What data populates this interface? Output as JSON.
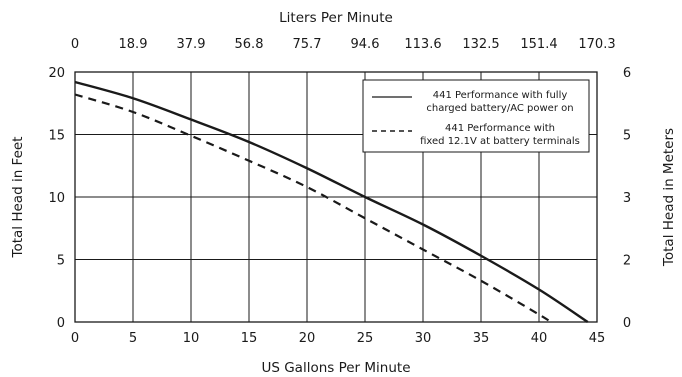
{
  "chart_data": {
    "type": "line",
    "x_axis_bottom": {
      "label": "US Gallons Per Minute",
      "range": [
        0,
        45
      ],
      "ticks": [
        0,
        5,
        10,
        15,
        20,
        25,
        30,
        35,
        40,
        45
      ]
    },
    "x_axis_top": {
      "label": "Liters Per Minute",
      "tick_labels": [
        "0",
        "18.9",
        "37.9",
        "56.8",
        "75.7",
        "94.6",
        "113.6",
        "132.5",
        "151.4",
        "170.3"
      ]
    },
    "y_axis_left": {
      "label": "Total Head in Feet",
      "range": [
        0,
        20
      ],
      "ticks": [
        0,
        5,
        10,
        15,
        20
      ]
    },
    "y_axis_right": {
      "label": "Total Head in Meters",
      "tick_labels": [
        "0",
        "2",
        "3",
        "5",
        "6"
      ]
    },
    "grid": true,
    "legend_position": "top-right",
    "series": [
      {
        "name": "441 Performance with fully charged battery/AC power on",
        "line_style": "solid",
        "x": [
          0,
          5,
          10,
          15,
          20,
          25,
          30,
          35,
          40,
          44.2
        ],
        "y": [
          19.2,
          17.9,
          16.2,
          14.4,
          12.3,
          10.0,
          7.8,
          5.3,
          2.6,
          0
        ]
      },
      {
        "name": "441 Performance with fixed 12.1V at battery terminals",
        "line_style": "dashed",
        "x": [
          0,
          5,
          10,
          15,
          20,
          25,
          30,
          35,
          40,
          41
        ],
        "y": [
          18.2,
          16.8,
          14.9,
          12.9,
          10.8,
          8.3,
          5.8,
          3.3,
          0.6,
          0
        ]
      }
    ],
    "legend_lines": [
      [
        "441 Performance with fully",
        "charged battery/AC power on"
      ],
      [
        "441 Performance with",
        "fixed 12.1V at battery terminals"
      ]
    ],
    "line_color": "#1a1a1a"
  }
}
